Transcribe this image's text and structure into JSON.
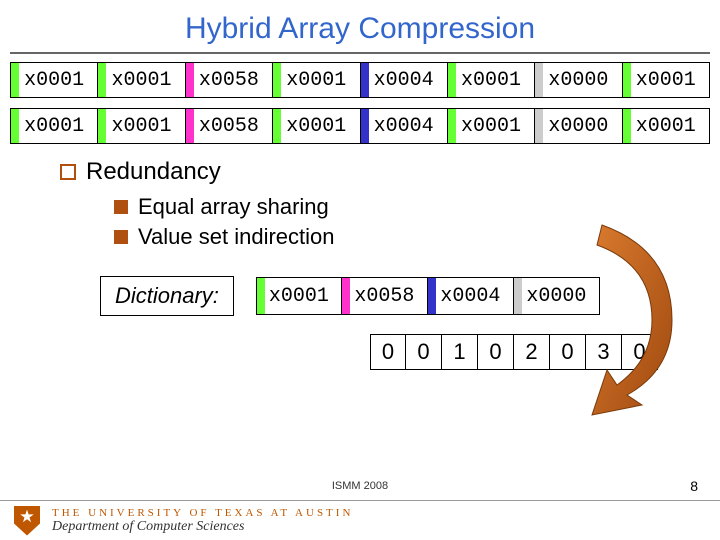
{
  "title": "Hybrid Array Compression",
  "colors": {
    "green": "#66ff33",
    "magenta": "#ff33cc",
    "blue": "#3333cc",
    "gray": "#cccccc",
    "title": "#3366cc",
    "accent": "#b05010",
    "ut_orange": "#bf5700"
  },
  "array1": [
    {
      "v": "x0001",
      "c": "green"
    },
    {
      "v": "x0001",
      "c": "green"
    },
    {
      "v": "x0058",
      "c": "magenta"
    },
    {
      "v": "x0001",
      "c": "green"
    },
    {
      "v": "x0004",
      "c": "blue"
    },
    {
      "v": "x0001",
      "c": "green"
    },
    {
      "v": "x0000",
      "c": "gray"
    },
    {
      "v": "x0001",
      "c": "green"
    }
  ],
  "array2": [
    {
      "v": "x0001",
      "c": "green"
    },
    {
      "v": "x0001",
      "c": "green"
    },
    {
      "v": "x0058",
      "c": "magenta"
    },
    {
      "v": "x0001",
      "c": "green"
    },
    {
      "v": "x0004",
      "c": "blue"
    },
    {
      "v": "x0001",
      "c": "green"
    },
    {
      "v": "x0000",
      "c": "gray"
    },
    {
      "v": "x0001",
      "c": "green"
    }
  ],
  "section": {
    "heading": "Redundancy",
    "items": [
      "Equal array sharing",
      "Value set indirection"
    ]
  },
  "dictionary": {
    "label": "Dictionary:",
    "cells": [
      {
        "v": "x0001",
        "c": "green"
      },
      {
        "v": "x0058",
        "c": "magenta"
      },
      {
        "v": "x0004",
        "c": "blue"
      },
      {
        "v": "x0000",
        "c": "gray"
      }
    ]
  },
  "indices": [
    "0",
    "0",
    "1",
    "0",
    "2",
    "0",
    "3",
    "0"
  ],
  "footer": {
    "conference": "ISMM 2008",
    "page": "8",
    "university": "THE UNIVERSITY OF TEXAS AT AUSTIN",
    "department": "Department of Computer Sciences"
  }
}
